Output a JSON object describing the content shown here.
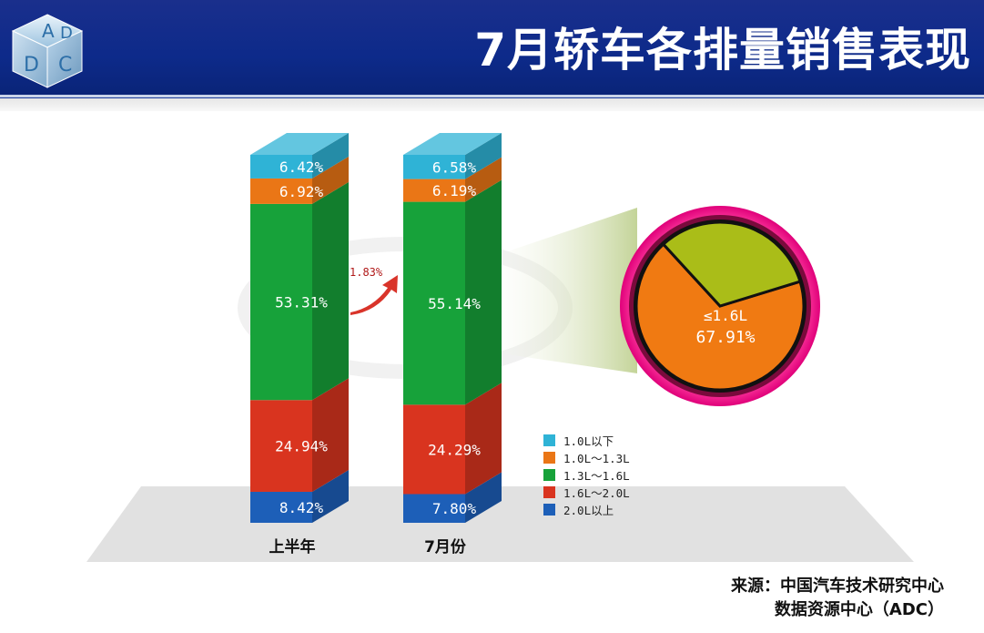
{
  "header": {
    "title": "7月轿车各排量销售表现",
    "logo_letters": [
      "A",
      "D",
      "D",
      "C"
    ]
  },
  "chart_data": {
    "type": "bar",
    "stacked": true,
    "categories": [
      "上半年",
      "7月份"
    ],
    "series": [
      {
        "name": "2.0L以上",
        "color": "#1d5fb8",
        "values": [
          8.42,
          7.8
        ],
        "labels": [
          "8.42%",
          "7.80%"
        ]
      },
      {
        "name": "1.6L～2.0L",
        "color": "#d9341f",
        "values": [
          24.94,
          24.29
        ],
        "labels": [
          "24.94%",
          "24.29%"
        ]
      },
      {
        "name": "1.3L～1.6L",
        "color": "#17a23a",
        "values": [
          53.31,
          55.14
        ],
        "labels": [
          "53.31%",
          "55.14%"
        ]
      },
      {
        "name": "1.0L～1.3L",
        "color": "#ea7616",
        "values": [
          6.92,
          6.19
        ],
        "labels": [
          "6.92%",
          "6.19%"
        ]
      },
      {
        "name": "1.0L以下",
        "color": "#2fb3d6",
        "values": [
          6.42,
          6.58
        ],
        "labels": [
          "6.42%",
          "6.58%"
        ]
      }
    ],
    "legend": [
      "1.0L以下",
      "1.0L～1.3L",
      "1.3L～1.6L",
      "1.6L～2.0L",
      "2.0L以上"
    ],
    "legend_colors": [
      "#2fb3d6",
      "#ea7616",
      "#17a23a",
      "#d9341f",
      "#1d5fb8"
    ],
    "legend_position": "right",
    "ylim": [
      0,
      100
    ],
    "annotation": {
      "label": "1.83%",
      "value": 1.83
    },
    "pie": {
      "slices": [
        {
          "label": "≤1.6L",
          "value_label": "67.91%",
          "value": 67.91,
          "color": "#f07a12"
        },
        {
          "label": "",
          "value": 32.09,
          "color": "#aabd18"
        }
      ]
    }
  },
  "source": {
    "line1": "来源：中国汽车技术研究中心",
    "line2": "数据资源中心（ADC）"
  }
}
